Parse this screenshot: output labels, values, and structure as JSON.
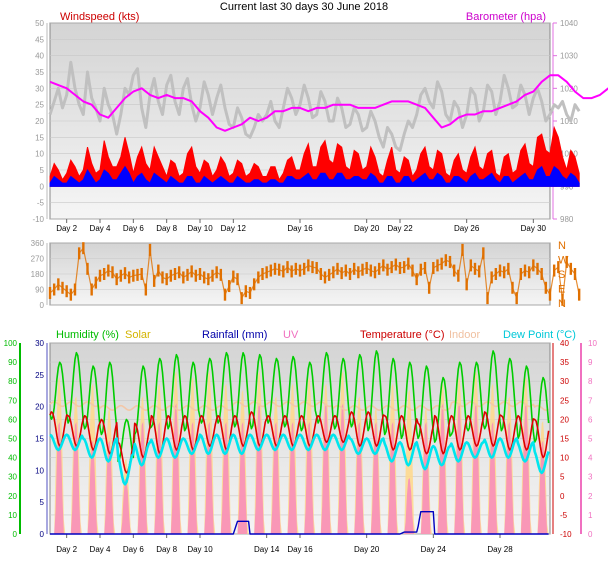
{
  "title": "Current last 30 days 30 June 2018",
  "colors": {
    "wind_speed": "#ff0000",
    "wind_gust": "#c0c0c0",
    "wind_avg": "#0000ff",
    "barometer": "#ff00ff",
    "wind_dir": "#e07000",
    "humidity": "#00cc00",
    "solar": "#ffd88a",
    "rain": "#0000c0",
    "uv": "#f77fc0",
    "temperature": "#dd0000",
    "indoor": "#f3c7a8",
    "dewpoint": "#00e5ee",
    "plot_bg": "#e4e4e4",
    "grid": "#c8c8c8"
  },
  "chart_data": [
    {
      "id": "wind",
      "type": "line",
      "title": "",
      "left_label": "Windspeed (kts)",
      "right_label": "Barometer (hpa)",
      "left_axis": {
        "min": -10,
        "max": 50,
        "ticks": [
          "-10",
          "-5",
          "0",
          "5",
          "10",
          "15",
          "20",
          "25",
          "30",
          "35",
          "40",
          "45",
          "50"
        ]
      },
      "right_axis": {
        "min": 980,
        "max": 1040,
        "ticks": [
          "980",
          "990",
          "1000",
          "1010",
          "1020",
          "1030",
          "1040"
        ]
      },
      "x_labels": [
        {
          "day": 2,
          "label": "Day 2"
        },
        {
          "day": 4,
          "label": "Day 4"
        },
        {
          "day": 6,
          "label": "Day 6"
        },
        {
          "day": 8,
          "label": "Day 8"
        },
        {
          "day": 10,
          "label": "Day 10"
        },
        {
          "day": 12,
          "label": "Day 12"
        },
        {
          "day": 16,
          "label": "Day 16"
        },
        {
          "day": 20,
          "label": "Day 20"
        },
        {
          "day": 22,
          "label": "Day 22"
        },
        {
          "day": 26,
          "label": "Day 26"
        },
        {
          "day": 30,
          "label": "Day 30"
        }
      ],
      "day_range": [
        1,
        31
      ],
      "series": [
        {
          "key": "gust",
          "color_key": "wind_gust",
          "axis": "left",
          "step_days": 0.25,
          "values": [
            22,
            26,
            30,
            24,
            28,
            38,
            30,
            25,
            22,
            35,
            27,
            24,
            20,
            30,
            25,
            22,
            16,
            22,
            30,
            28,
            34,
            36,
            24,
            18,
            28,
            33,
            26,
            22,
            31,
            34,
            26,
            22,
            30,
            33,
            25,
            20,
            24,
            32,
            28,
            22,
            27,
            31,
            24,
            19,
            18,
            24,
            21,
            16,
            15,
            18,
            22,
            20,
            22,
            26,
            20,
            18,
            24,
            30,
            27,
            22,
            25,
            31,
            27,
            21,
            22,
            29,
            26,
            20,
            20,
            27,
            24,
            18,
            19,
            24,
            22,
            17,
            18,
            23,
            20,
            15,
            12,
            18,
            16,
            12,
            11,
            16,
            20,
            18,
            22,
            28,
            30,
            26,
            24,
            32,
            29,
            22,
            20,
            26,
            24,
            18,
            22,
            30,
            28,
            20,
            23,
            31,
            29,
            22,
            26,
            34,
            30,
            24,
            25,
            31,
            28,
            22,
            27,
            30,
            26,
            20,
            22,
            25,
            24,
            26,
            22,
            20,
            25,
            23
          ]
        },
        {
          "key": "speed",
          "color_key": "wind_speed",
          "axis": "left",
          "step_days": 0.25,
          "values": [
            3,
            7,
            5,
            2,
            4,
            8,
            6,
            3,
            5,
            12,
            7,
            4,
            5,
            14,
            9,
            6,
            6,
            9,
            15,
            10,
            4,
            9,
            12,
            7,
            5,
            12,
            9,
            6,
            3,
            8,
            7,
            3,
            4,
            10,
            12,
            6,
            4,
            8,
            7,
            3,
            5,
            9,
            7,
            3,
            4,
            8,
            7,
            3,
            4,
            7,
            6,
            3,
            3,
            6,
            6,
            2,
            4,
            8,
            9,
            5,
            5,
            10,
            13,
            6,
            6,
            12,
            14,
            8,
            7,
            13,
            12,
            6,
            5,
            11,
            10,
            5,
            6,
            12,
            9,
            4,
            3,
            8,
            12,
            5,
            4,
            9,
            8,
            3,
            5,
            10,
            12,
            6,
            5,
            11,
            10,
            4,
            3,
            8,
            10,
            5,
            4,
            9,
            12,
            6,
            5,
            10,
            11,
            4,
            3,
            9,
            10,
            4,
            5,
            11,
            13,
            7,
            6,
            15,
            16,
            11,
            10,
            18,
            15,
            9,
            5,
            11,
            9,
            4
          ]
        },
        {
          "key": "avg",
          "color_key": "wind_avg",
          "axis": "left",
          "step_days": 0.25,
          "values": [
            1,
            3,
            2,
            1,
            1,
            3,
            2,
            1,
            2,
            5,
            3,
            1,
            2,
            5,
            4,
            2,
            2,
            4,
            6,
            4,
            1,
            3,
            4,
            2,
            1,
            4,
            3,
            2,
            1,
            3,
            2,
            1,
            1,
            3,
            3,
            1,
            1,
            3,
            2,
            1,
            2,
            3,
            2,
            1,
            1,
            3,
            2,
            1,
            1,
            2,
            2,
            1,
            1,
            2,
            2,
            1,
            1,
            3,
            3,
            2,
            2,
            3,
            4,
            2,
            2,
            4,
            4,
            2,
            2,
            4,
            4,
            2,
            2,
            3,
            3,
            2,
            2,
            4,
            3,
            1,
            1,
            3,
            3,
            1,
            1,
            3,
            3,
            1,
            2,
            3,
            4,
            2,
            2,
            4,
            3,
            1,
            1,
            3,
            3,
            2,
            1,
            3,
            4,
            2,
            2,
            3,
            4,
            2,
            1,
            3,
            3,
            1,
            2,
            3,
            4,
            2,
            2,
            5,
            6,
            3,
            3,
            6,
            5,
            3,
            2,
            4,
            3,
            1
          ]
        },
        {
          "key": "pressure",
          "color_key": "barometer",
          "axis": "right",
          "step_days": 0.5,
          "values": [
            1022,
            1021,
            1020,
            1018,
            1016,
            1015,
            1012,
            1011,
            1014,
            1017,
            1019,
            1020,
            1018,
            1017,
            1018,
            1017,
            1017,
            1016,
            1013,
            1011,
            1008,
            1007,
            1008,
            1009,
            1011,
            1010,
            1011,
            1013,
            1013,
            1014,
            1014,
            1013,
            1014,
            1014,
            1015,
            1015,
            1015,
            1014,
            1014,
            1014,
            1015,
            1016,
            1016,
            1016,
            1015,
            1014,
            1011,
            1008,
            1009,
            1011,
            1012,
            1012,
            1013,
            1013,
            1014,
            1015,
            1016,
            1018,
            1019,
            1022,
            1024,
            1024,
            1022,
            1019,
            1017,
            1017,
            1018,
            1020,
            1021,
            1022
          ]
        }
      ]
    },
    {
      "id": "direction",
      "type": "line",
      "title": "",
      "left_axis": {
        "min": 0,
        "max": 360,
        "ticks": [
          "0",
          "90",
          "180",
          "270",
          "360"
        ]
      },
      "right_labels": [
        "N",
        "W",
        "S",
        "E",
        "N"
      ],
      "day_range": [
        1,
        31
      ],
      "series": [
        {
          "key": "wind_dir",
          "color_key": "wind_dir",
          "step_days": 0.25,
          "values": [
            70,
            90,
            120,
            100,
            80,
            60,
            90,
            300,
            330,
            210,
            90,
            130,
            170,
            180,
            200,
            190,
            150,
            170,
            185,
            160,
            170,
            175,
            180,
            90,
            320,
            140,
            200,
            160,
            150,
            170,
            180,
            190,
            160,
            175,
            195,
            170,
            180,
            160,
            150,
            170,
            190,
            175,
            60,
            110,
            165,
            150,
            40,
            80,
            70,
            120,
            160,
            180,
            190,
            200,
            210,
            205,
            195,
            220,
            195,
            210,
            200,
            210,
            230,
            220,
            215,
            180,
            160,
            175,
            190,
            210,
            185,
            200,
            180,
            210,
            190,
            205,
            215,
            200,
            190,
            210,
            230,
            205,
            220,
            235,
            215,
            220,
            240,
            200,
            150,
            205,
            215,
            100,
            215,
            230,
            240,
            260,
            250,
            200,
            170,
            320,
            120,
            230,
            210,
            195,
            300,
            40,
            160,
            180,
            200,
            190,
            210,
            100,
            40,
            180,
            200,
            190,
            230,
            210,
            180,
            100,
            60,
            200,
            220,
            30,
            250,
            210,
            180,
            60
          ]
        }
      ]
    },
    {
      "id": "climate",
      "type": "line",
      "title": "",
      "labels": [
        "Humidity (%)",
        "Solar",
        "Rainfall (mm)",
        "UV",
        "Temperature (°C)",
        "Indoor",
        "Dew Point (°C)"
      ],
      "humidity_axis": {
        "min": 0,
        "max": 100,
        "ticks": [
          "0",
          "10",
          "20",
          "30",
          "40",
          "50",
          "60",
          "70",
          "80",
          "90",
          "100"
        ]
      },
      "rain_axis": {
        "min": 0,
        "max": 30,
        "ticks": [
          "0",
          "5",
          "10",
          "15",
          "20",
          "25",
          "30"
        ]
      },
      "temperature_axis": {
        "min": -10,
        "max": 40,
        "ticks": [
          "-10",
          "-5",
          "0",
          "5",
          "10",
          "15",
          "20",
          "25",
          "30",
          "35",
          "40"
        ]
      },
      "uv_axis": {
        "min": 0,
        "max": 10,
        "ticks": [
          "0",
          "1",
          "2",
          "3",
          "4",
          "5",
          "6",
          "7",
          "8",
          "9",
          "10"
        ]
      },
      "x_labels": [
        {
          "day": 2,
          "label": "Day 2"
        },
        {
          "day": 4,
          "label": "Day 4"
        },
        {
          "day": 6,
          "label": "Day 6"
        },
        {
          "day": 8,
          "label": "Day 8"
        },
        {
          "day": 10,
          "label": "Day 10"
        },
        {
          "day": 14,
          "label": "Day 14"
        },
        {
          "day": 16,
          "label": "Day 16"
        },
        {
          "day": 20,
          "label": "Day 20"
        },
        {
          "day": 24,
          "label": "Day 24"
        },
        {
          "day": 28,
          "label": "Day 28"
        }
      ],
      "day_range": [
        1,
        31
      ],
      "daily": {
        "temp_max": [
          22,
          21,
          21,
          20,
          14,
          19,
          21,
          21,
          21,
          21,
          21,
          21,
          22,
          21,
          21,
          21,
          21,
          21,
          22,
          22,
          21,
          21,
          19,
          21,
          21,
          21,
          22,
          21,
          21,
          20
        ],
        "temp_min": [
          13,
          13,
          12,
          11,
          6,
          10,
          11,
          12,
          12,
          13,
          12,
          13,
          13,
          13,
          13,
          13,
          14,
          14,
          13,
          13,
          12,
          12,
          11,
          11,
          12,
          13,
          13,
          12,
          12,
          10
        ],
        "dew_max": [
          16,
          16,
          15,
          15,
          11,
          14,
          15,
          15,
          15,
          16,
          16,
          16,
          16,
          16,
          16,
          16,
          16,
          16,
          15,
          15,
          14,
          14,
          13,
          13,
          14,
          14,
          15,
          15,
          14,
          12
        ],
        "dew_min": [
          12,
          12,
          10,
          9,
          3,
          8,
          10,
          10,
          11,
          11,
          11,
          11,
          12,
          12,
          12,
          12,
          12,
          12,
          11,
          11,
          9,
          8,
          7,
          8,
          9,
          10,
          10,
          10,
          9,
          6
        ],
        "hum_max": [
          90,
          95,
          88,
          90,
          60,
          88,
          92,
          94,
          90,
          92,
          95,
          95,
          94,
          92,
          93,
          90,
          95,
          92,
          94,
          96,
          92,
          90,
          88,
          82,
          90,
          90,
          96,
          92,
          88,
          82
        ],
        "hum_min": [
          60,
          58,
          55,
          52,
          38,
          52,
          56,
          55,
          54,
          58,
          58,
          56,
          55,
          58,
          56,
          54,
          58,
          55,
          56,
          54,
          52,
          50,
          50,
          48,
          52,
          54,
          55,
          54,
          50,
          48
        ],
        "indoor": [
          24,
          24,
          24,
          23,
          23,
          23,
          23,
          23,
          23,
          23,
          23,
          24,
          24,
          24,
          24,
          24,
          24,
          23,
          23,
          23,
          23,
          23,
          23,
          23,
          24,
          24,
          24,
          24,
          24,
          23
        ],
        "solar_peak": [
          25,
          22,
          24,
          20,
          12,
          22,
          24,
          26,
          25,
          26,
          24,
          23,
          26,
          22,
          24,
          25,
          24,
          26,
          22,
          20,
          24,
          23,
          20,
          24,
          25,
          26,
          24,
          22,
          25,
          18
        ],
        "uv_peak": [
          6,
          6,
          5,
          5,
          3,
          6,
          6,
          7,
          6,
          6,
          6,
          6,
          7,
          6,
          6,
          6,
          7,
          7,
          6,
          6,
          6,
          3,
          6,
          7,
          7,
          7,
          6,
          6,
          7,
          5
        ],
        "rain_mm": [
          0,
          0,
          0,
          0,
          0,
          0,
          0,
          0,
          0,
          0,
          0,
          2,
          0,
          0,
          0,
          0,
          0,
          0,
          0,
          0,
          0,
          0.3,
          3.5,
          0,
          0,
          0,
          0,
          0,
          0,
          0
        ]
      }
    }
  ]
}
